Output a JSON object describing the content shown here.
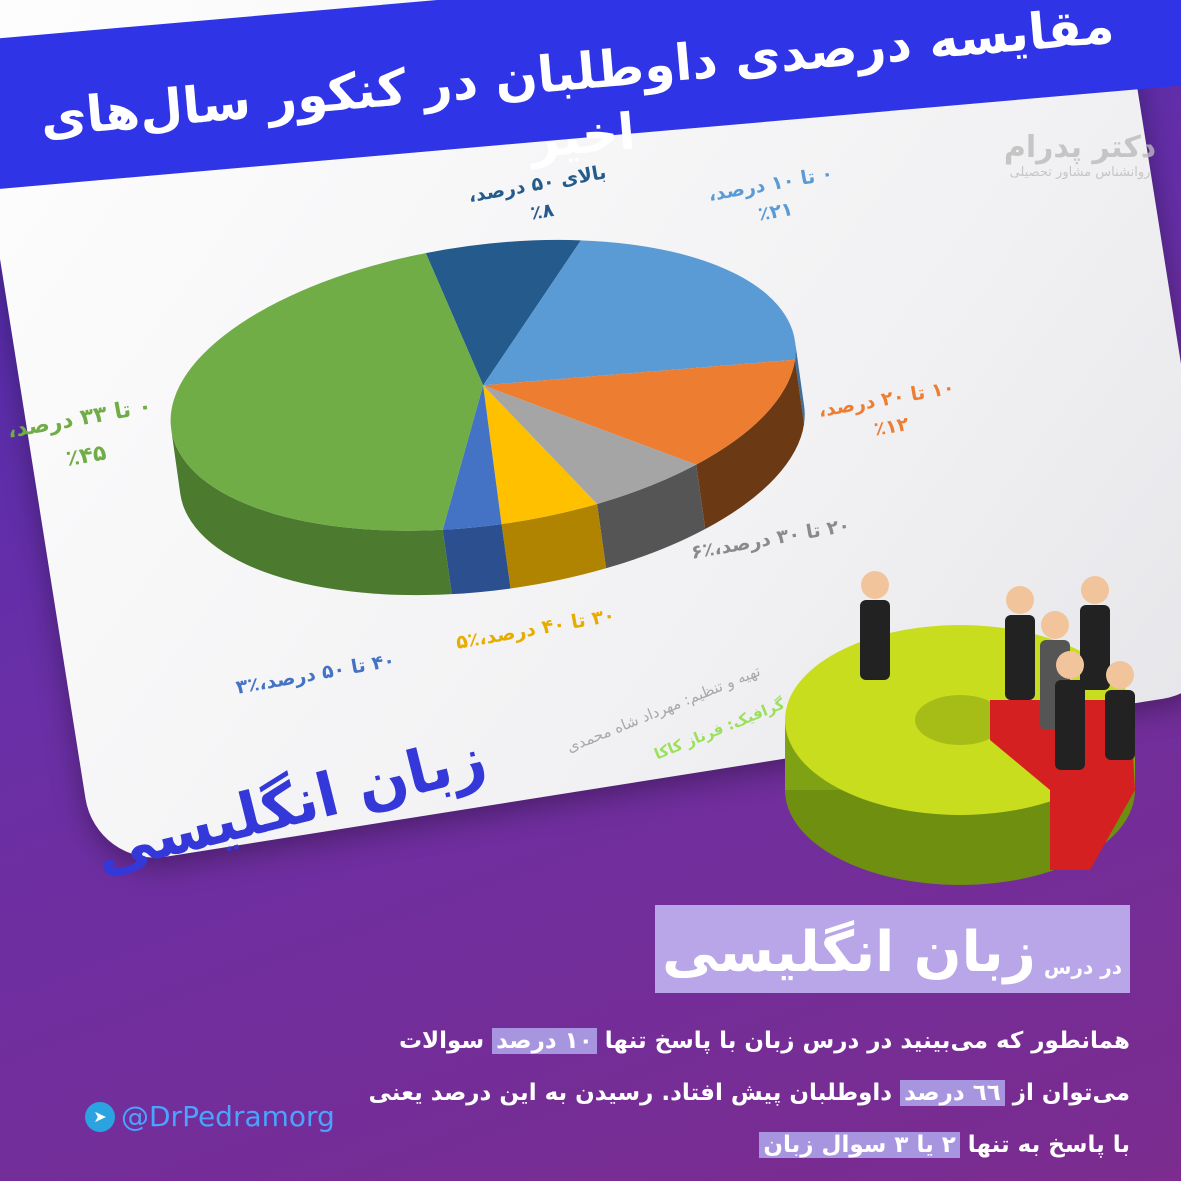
{
  "title": "مقایسه درصدی داوطلبان در کنکور سال‌های اخیر",
  "logo": {
    "name": "دکتر پدرام",
    "tagline": "روانشناس مشاور تحصیلی"
  },
  "chart_data": {
    "type": "pie",
    "style": "3d",
    "title": "مقایسه درصدی داوطلبان در کنکور سال‌های اخیر",
    "subject": "زبان انگلیسی",
    "slices": [
      {
        "label": "بالای ۵۰ درصد،",
        "display": "٪۸",
        "value": 8,
        "color": "#245a8c",
        "side": "#1a3f63"
      },
      {
        "label": "۰ تا ۱۰ درصد،",
        "display": "٪۲۱",
        "value": 21,
        "color": "#5b9bd5",
        "side": "#3e6f9c"
      },
      {
        "label": "۱۰ تا ۲۰ درصد،",
        "display": "٪۱۲",
        "value": 12,
        "color": "#ed7d31",
        "side": "#6b3a14"
      },
      {
        "label": "۲۰ تا ۳۰ درصد،",
        "display": "٪۶",
        "value": 6,
        "color": "#a5a5a5",
        "side": "#555555"
      },
      {
        "label": "۳۰ تا ۴۰ درصد،",
        "display": "٪۵",
        "value": 5,
        "color": "#ffc000",
        "side": "#b08400"
      },
      {
        "label": "۴۰ تا ۵۰ درصد،",
        "display": "٪۳",
        "value": 3,
        "color": "#4472c4",
        "side": "#2c4f8f"
      },
      {
        "label": "۰ تا ۳۳ درصد،",
        "display": "٪۴۵",
        "value": 45,
        "color": "#70ad47",
        "side": "#4c7a2f"
      }
    ]
  },
  "credits": {
    "prepared": "تهیه و تنظیم: مهرداد شاه محمدی",
    "graphic": "گرافیک: فرناز کاکا"
  },
  "subject_label": "زبان انگلیسی",
  "subtitle": {
    "prefix": "در درس",
    "main": "زبان انگلیسی"
  },
  "paragraph": {
    "l1a": "همانطور که می‌بینید در درس زبان با پاسخ تنها ",
    "l1h": "۱۰ درصد",
    "l1b": " سوالات",
    "l2a": "می‌توان از ",
    "l2h": "٦٦ درصد",
    "l2b": " داوطلبان پیش افتاد. رسیدن به این درصد یعنی",
    "l3a": "با پاسخ به تنها ",
    "l3h": "۲ یا ۳ سوال زبان"
  },
  "telegram": {
    "icon": "telegram-icon",
    "handle": "@DrPedramorg"
  }
}
